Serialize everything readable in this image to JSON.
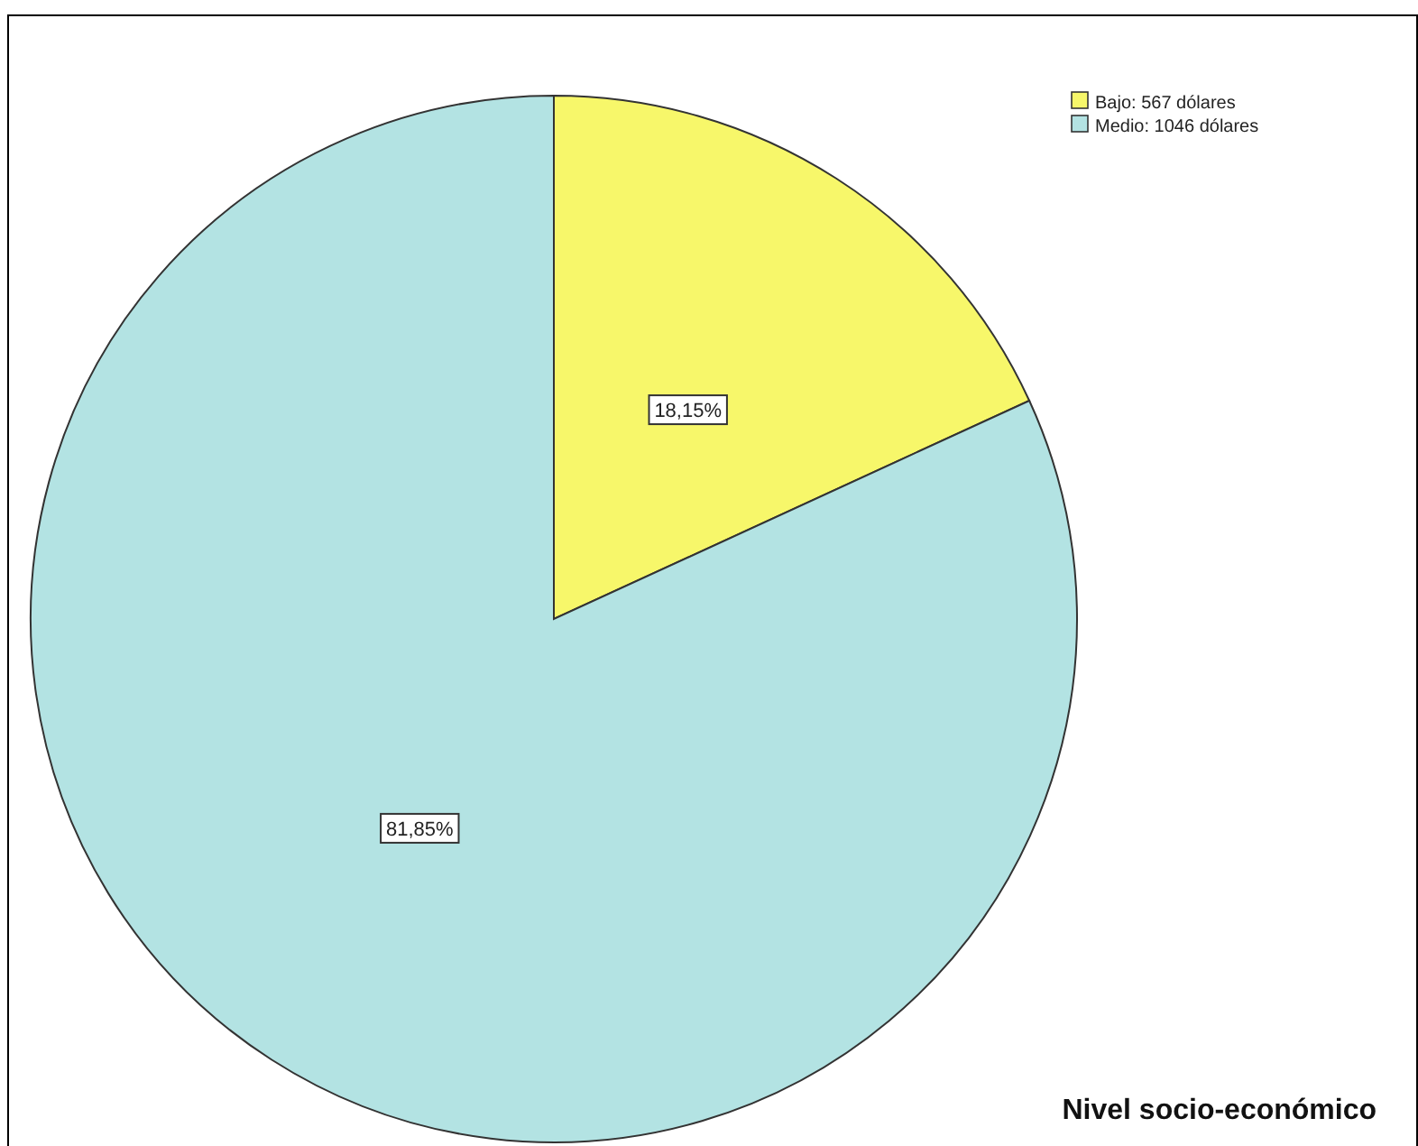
{
  "chart_data": {
    "type": "pie",
    "title": "Nivel socio-económico",
    "categories": [
      "Bajo: 567 dólares",
      "Medio: 1046 dólares"
    ],
    "values": [
      18.15,
      81.85
    ],
    "colors": [
      "#f7f76a",
      "#b3e3e3"
    ],
    "value_labels": [
      "18,15%",
      "81,85%"
    ],
    "legend": "top right"
  }
}
